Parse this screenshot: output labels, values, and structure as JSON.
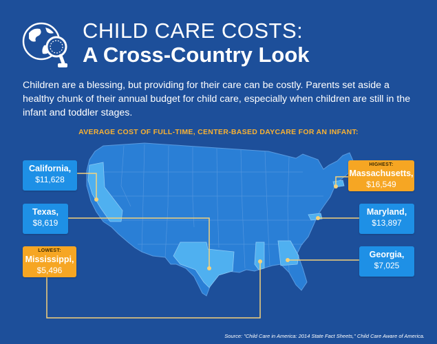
{
  "header": {
    "title_line1": "CHILD CARE COSTS:",
    "title_line2": "A  Cross-Country Look"
  },
  "intro": "Children are a blessing, but providing for their care can be costly. Parents set aside a healthy chunk of their annual budget for child care, especially when children are still in the infant and toddler stages.",
  "subtitle": "AVERAGE COST OF FULL-TIME, CENTER-BASED DAYCARE FOR AN INFANT:",
  "states": {
    "california": {
      "name": "California,",
      "cost": "$11,628"
    },
    "texas": {
      "name": "Texas,",
      "cost": "$8,619"
    },
    "mississippi": {
      "tag": "LOWEST:",
      "name": "Mississippi,",
      "cost": "$5,496"
    },
    "massachusetts": {
      "tag": "HIGHEST:",
      "name": "Massachusetts,",
      "cost": "$16,549"
    },
    "maryland": {
      "name": "Maryland,",
      "cost": "$13,897"
    },
    "georgia": {
      "name": "Georgia,",
      "cost": "$7,025"
    }
  },
  "source": "Source: \"Child Care in America: 2014 State Fact Sheets,\" Child Care Aware of America.",
  "colors": {
    "background": "#1d4f9a",
    "map_fill": "#2a7fd6",
    "map_highlight": "#4fb0f0",
    "box_blue": "#1e90e6",
    "box_orange": "#f6a623",
    "accent_yellow": "#f9b233"
  }
}
